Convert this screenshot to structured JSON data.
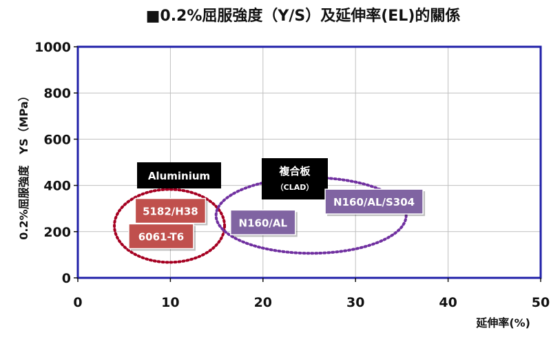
{
  "chart_data": {
    "type": "scatter",
    "title": "■0.2%屈服強度（Y/S）及延伸率(EL)的關係",
    "xlabel": "延伸率(%)",
    "ylabel": "0.2%屈服強度　YS（MPa）",
    "xlim": [
      0,
      50
    ],
    "ylim": [
      0,
      1000
    ],
    "x_ticks": [
      "0",
      "10",
      "20",
      "30",
      "40",
      "50"
    ],
    "y_ticks": [
      "0",
      "200",
      "400",
      "600",
      "800",
      "1000"
    ],
    "grid": true,
    "series": [
      {
        "name": "Aluminium",
        "color": "#c0504d",
        "ellipse_color": "#a50021",
        "points": [
          {
            "label": "5182/H38",
            "x": 10,
            "y": 290
          },
          {
            "label": "6061-T6",
            "x": 9,
            "y": 180
          }
        ]
      },
      {
        "name": "複合板",
        "subname": "（CLAD）",
        "color": "#8064a2",
        "ellipse_color": "#7030a0",
        "points": [
          {
            "label": "N160/AL",
            "x": 20,
            "y": 240
          },
          {
            "label": "N160/AL/S304",
            "x": 32,
            "y": 330
          }
        ]
      }
    ],
    "colors": {
      "frame": "#1f1fa8",
      "grid": "#bfbfbf",
      "legend_box": "#000000"
    }
  }
}
